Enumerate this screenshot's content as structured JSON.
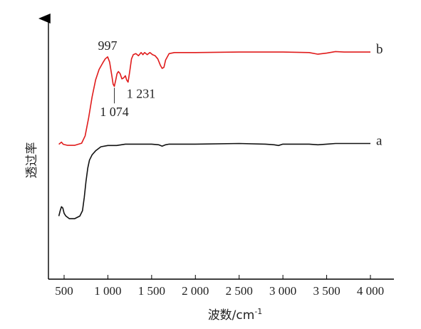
{
  "chart_data": {
    "type": "line",
    "xlabel": "波数/cm",
    "xlabel_sup": "-1",
    "ylabel": "透过率",
    "xlim": [
      400,
      4000
    ],
    "x_ticks": [
      {
        "value": 500,
        "label": "500"
      },
      {
        "value": 1000,
        "label": "1 000"
      },
      {
        "value": 1500,
        "label": "1 500"
      },
      {
        "value": 2000,
        "label": "2 000"
      },
      {
        "value": 2500,
        "label": "2 500"
      },
      {
        "value": 3000,
        "label": "3 000"
      },
      {
        "value": 3500,
        "label": "3 500"
      },
      {
        "value": 4000,
        "label": "4 000"
      }
    ],
    "grid": false,
    "series": [
      {
        "name": "b",
        "color": "#e01b1b",
        "points": [
          [
            440,
            0.05
          ],
          [
            470,
            0.07
          ],
          [
            490,
            0.05
          ],
          [
            540,
            0.04
          ],
          [
            620,
            0.04
          ],
          [
            700,
            0.06
          ],
          [
            740,
            0.13
          ],
          [
            780,
            0.3
          ],
          [
            820,
            0.5
          ],
          [
            860,
            0.66
          ],
          [
            900,
            0.76
          ],
          [
            940,
            0.82
          ],
          [
            970,
            0.86
          ],
          [
            997,
            0.88
          ],
          [
            1020,
            0.83
          ],
          [
            1045,
            0.7
          ],
          [
            1060,
            0.62
          ],
          [
            1074,
            0.6
          ],
          [
            1090,
            0.66
          ],
          [
            1105,
            0.72
          ],
          [
            1120,
            0.74
          ],
          [
            1140,
            0.72
          ],
          [
            1160,
            0.67
          ],
          [
            1180,
            0.68
          ],
          [
            1200,
            0.7
          ],
          [
            1215,
            0.66
          ],
          [
            1231,
            0.64
          ],
          [
            1250,
            0.74
          ],
          [
            1270,
            0.86
          ],
          [
            1290,
            0.9
          ],
          [
            1320,
            0.91
          ],
          [
            1350,
            0.89
          ],
          [
            1380,
            0.92
          ],
          [
            1400,
            0.9
          ],
          [
            1420,
            0.92
          ],
          [
            1450,
            0.9
          ],
          [
            1480,
            0.92
          ],
          [
            1510,
            0.9
          ],
          [
            1540,
            0.89
          ],
          [
            1570,
            0.86
          ],
          [
            1600,
            0.8
          ],
          [
            1620,
            0.77
          ],
          [
            1640,
            0.78
          ],
          [
            1660,
            0.85
          ],
          [
            1700,
            0.91
          ],
          [
            1760,
            0.92
          ],
          [
            2000,
            0.92
          ],
          [
            2500,
            0.925
          ],
          [
            3000,
            0.925
          ],
          [
            3300,
            0.92
          ],
          [
            3400,
            0.905
          ],
          [
            3500,
            0.915
          ],
          [
            3600,
            0.93
          ],
          [
            3700,
            0.925
          ],
          [
            3850,
            0.925
          ],
          [
            4000,
            0.925
          ]
        ]
      },
      {
        "name": "a",
        "color": "#111111",
        "points": [
          [
            440,
            0.26
          ],
          [
            455,
            0.3
          ],
          [
            470,
            0.33
          ],
          [
            485,
            0.32
          ],
          [
            500,
            0.28
          ],
          [
            520,
            0.26
          ],
          [
            560,
            0.24
          ],
          [
            620,
            0.24
          ],
          [
            680,
            0.26
          ],
          [
            710,
            0.3
          ],
          [
            730,
            0.4
          ],
          [
            750,
            0.52
          ],
          [
            770,
            0.62
          ],
          [
            790,
            0.68
          ],
          [
            820,
            0.72
          ],
          [
            860,
            0.75
          ],
          [
            920,
            0.78
          ],
          [
            1000,
            0.79
          ],
          [
            1100,
            0.79
          ],
          [
            1200,
            0.8
          ],
          [
            1300,
            0.8
          ],
          [
            1400,
            0.8
          ],
          [
            1500,
            0.8
          ],
          [
            1580,
            0.795
          ],
          [
            1620,
            0.785
          ],
          [
            1660,
            0.795
          ],
          [
            1700,
            0.8
          ],
          [
            2000,
            0.8
          ],
          [
            2500,
            0.805
          ],
          [
            2800,
            0.8
          ],
          [
            2900,
            0.795
          ],
          [
            2950,
            0.79
          ],
          [
            3000,
            0.8
          ],
          [
            3300,
            0.8
          ],
          [
            3400,
            0.795
          ],
          [
            3500,
            0.8
          ],
          [
            3600,
            0.805
          ],
          [
            3800,
            0.805
          ],
          [
            4000,
            0.805
          ]
        ]
      }
    ],
    "annotations": [
      {
        "text": "997",
        "x": 997,
        "series": "b",
        "position": "above"
      },
      {
        "text": "1 074",
        "x": 1074,
        "series": "b",
        "position": "below"
      },
      {
        "text": "1 231",
        "x": 1231,
        "series": "b",
        "position": "below-right"
      }
    ]
  }
}
